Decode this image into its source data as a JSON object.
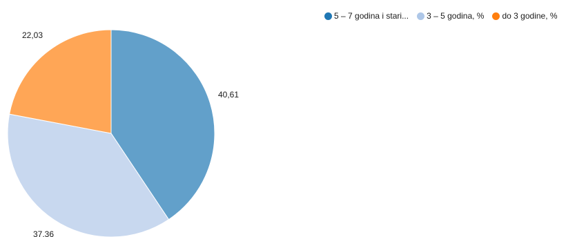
{
  "chart_data": {
    "type": "pie",
    "title": "",
    "legend_position": "top-right",
    "series": [
      {
        "name": "5 – 7 godina i stari...",
        "value": 40.61,
        "label": "40,61",
        "legend_color": "#1f77b4",
        "slice_color": "#62a0ca"
      },
      {
        "name": "3 – 5 godina, %",
        "value": 37.36,
        "label": "37,36",
        "legend_color": "#aec7e8",
        "slice_color": "#c8d8ef"
      },
      {
        "name": "do 3 godine, %",
        "value": 22.03,
        "label": "22,03",
        "legend_color": "#ff7f0e",
        "slice_color": "#ffa656"
      }
    ]
  }
}
